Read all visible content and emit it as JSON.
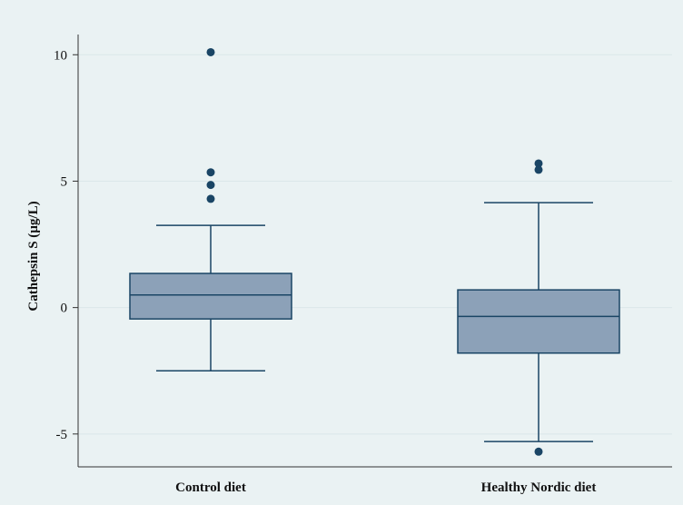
{
  "chart_data": {
    "type": "box",
    "title": "",
    "xlabel": "",
    "ylabel": "Cathepsin S (µg/L)",
    "ylim": [
      -6.3,
      10.8
    ],
    "yticks": [
      -5,
      0,
      5,
      10
    ],
    "ytick_labels": [
      "-5",
      "0",
      "5",
      "10"
    ],
    "grid": true,
    "categories": [
      "Control diet",
      "Healthy Nordic diet"
    ],
    "boxes": [
      {
        "category": "Control diet",
        "whisker_low": -2.5,
        "q1": -0.45,
        "median": 0.5,
        "q3": 1.35,
        "whisker_high": 3.25,
        "outliers": [
          10.1,
          5.35,
          4.85,
          4.3
        ]
      },
      {
        "category": "Healthy Nordic diet",
        "whisker_low": -5.3,
        "q1": -1.8,
        "median": -0.35,
        "q3": 0.7,
        "whisker_high": 4.15,
        "outliers": [
          5.7,
          5.45,
          -5.7
        ]
      }
    ],
    "colors": {
      "box_fill": "#8ca1b8",
      "box_stroke": "#1a4565",
      "outlier": "#1a4565",
      "grid": "#dbe7e9",
      "axis": "#333333"
    }
  }
}
